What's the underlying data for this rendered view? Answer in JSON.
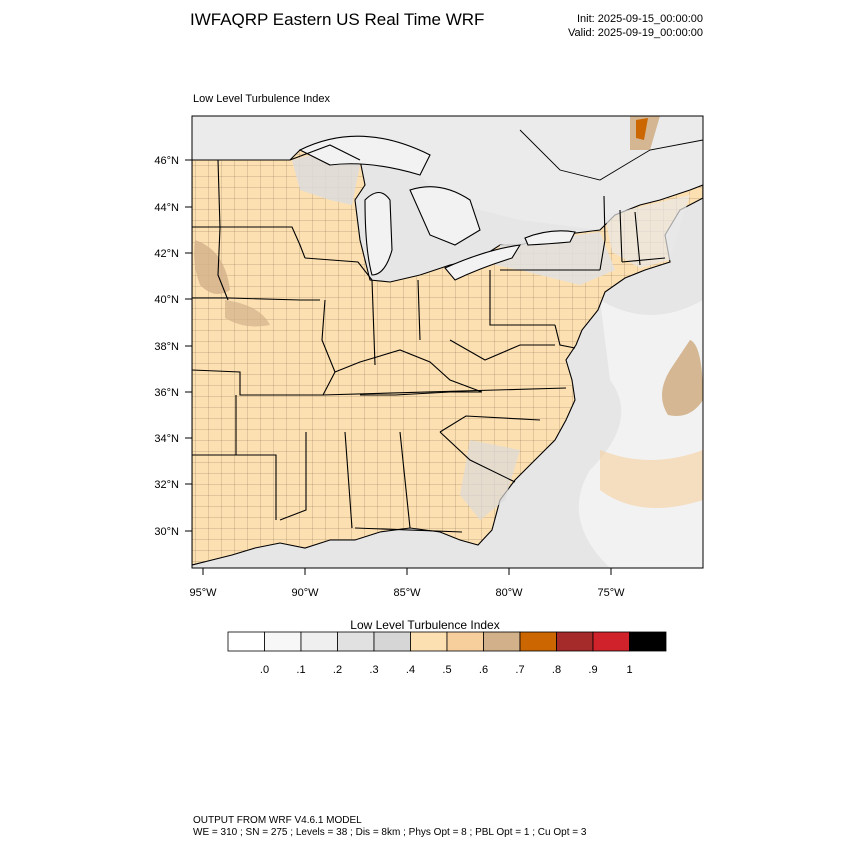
{
  "header": {
    "title": "IWFAQRP Eastern US Real Time WRF",
    "init": "Init: 2025-09-15_00:00:00",
    "valid": "Valid: 2025-09-19_00:00:00"
  },
  "map": {
    "field_label": "Low Level Turbulence Index",
    "lat_ticks": [
      "46°N",
      "44°N",
      "42°N",
      "40°N",
      "38°N",
      "36°N",
      "34°N",
      "32°N",
      "30°N"
    ],
    "lon_ticks": [
      "95°W",
      "90°W",
      "85°W",
      "80°W",
      "75°W"
    ],
    "colors": {
      "land_low": "#fde0b2",
      "water_low": "#e6e6e6",
      "water_very_low": "#f2f2f2",
      "moderate": "#d2b08a",
      "high": "#cc6600"
    }
  },
  "colorbar": {
    "title": "Low Level Turbulence Index",
    "labels": [
      ".0",
      ".1",
      ".2",
      ".3",
      ".4",
      ".5",
      ".6",
      ".7",
      ".8",
      ".9",
      "1"
    ],
    "colors": [
      "#ffffff",
      "#f7f7f7",
      "#efefef",
      "#e1e1e1",
      "#d6d6d6",
      "#fde0b2",
      "#f6cf9c",
      "#d2b08a",
      "#cc6600",
      "#a52a2a",
      "#d0222b",
      "#000000"
    ]
  },
  "footer": {
    "line1": "OUTPUT FROM WRF V4.6.1 MODEL",
    "line2": "WE = 310 ; SN = 275 ; Levels = 38 ; Dis = 8km ; Phys Opt = 8 ; PBL Opt = 1 ; Cu Opt = 3"
  }
}
